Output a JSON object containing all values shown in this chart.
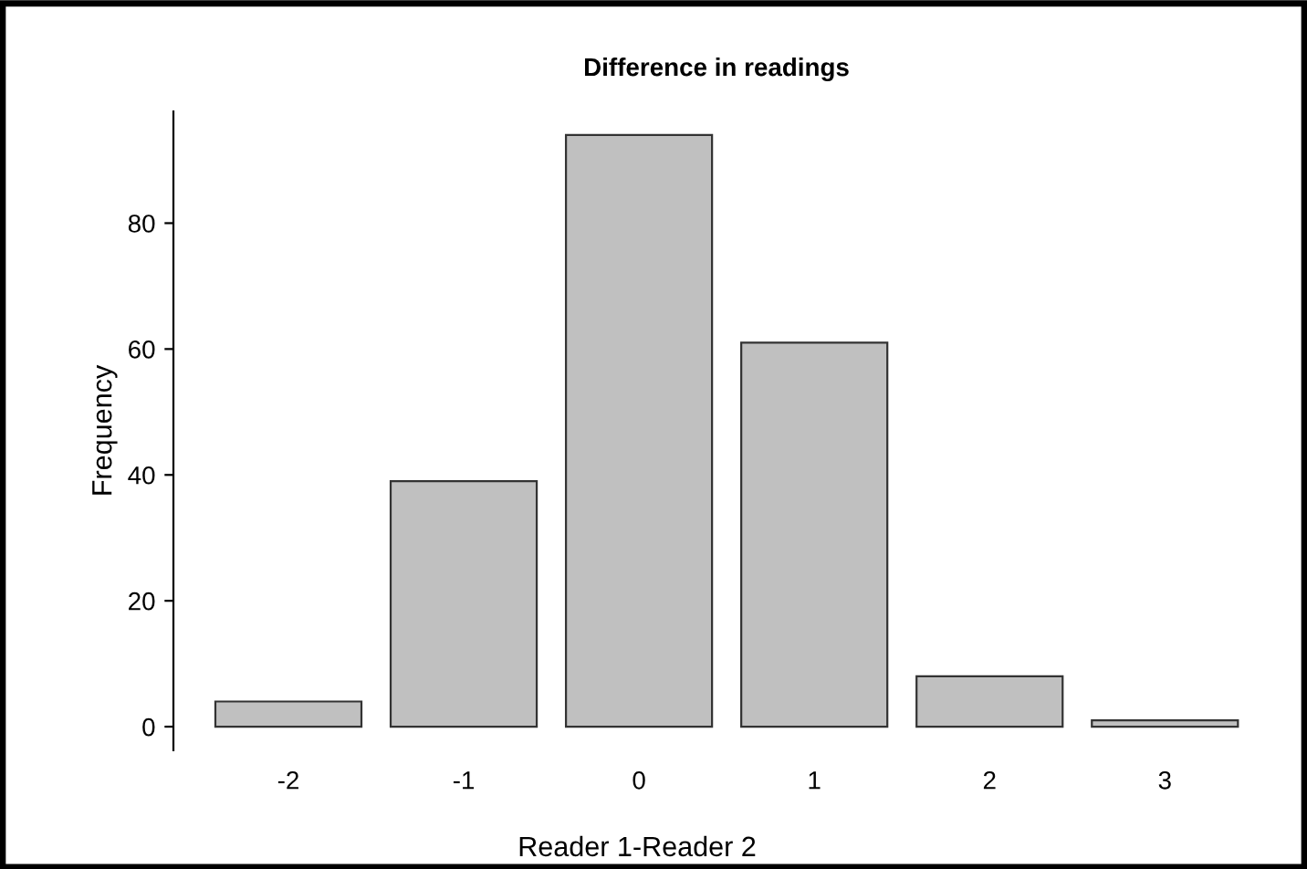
{
  "chart_data": {
    "type": "bar",
    "title": "Difference in readings",
    "xlabel": "Reader 1-Reader 2",
    "ylabel": "Frequency",
    "categories": [
      "-2",
      "-1",
      "0",
      "1",
      "2",
      "3"
    ],
    "values": [
      4,
      39,
      94,
      61,
      8,
      1
    ],
    "color": "#c0c0c0",
    "ylim": [
      -3.76,
      97.76
    ],
    "yticks": [
      0,
      20,
      40,
      60,
      80
    ],
    "grid": false,
    "legend": false
  }
}
